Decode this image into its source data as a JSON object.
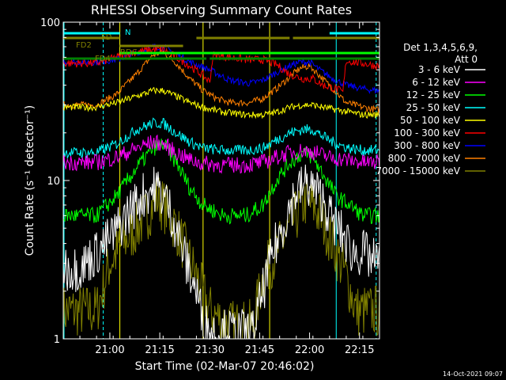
{
  "chart_data": {
    "type": "line",
    "title": "RHESSI Observing Summary Count Rates",
    "xlabel": "Start Time (02-Mar-07 20:46:02)",
    "ylabel": "Count Rate (s⁻¹ detector⁻¹)",
    "x_unit": "minutes since 20:46:02",
    "xlim": [
      0,
      95
    ],
    "ylim": [
      1,
      100
    ],
    "yscale": "log",
    "x_ticks": [
      {
        "value": 14,
        "label": "21:00"
      },
      {
        "value": 29,
        "label": "21:15"
      },
      {
        "value": 44,
        "label": "21:30"
      },
      {
        "value": 59,
        "label": "21:45"
      },
      {
        "value": 74,
        "label": "22:00"
      },
      {
        "value": 89,
        "label": "22:15"
      }
    ],
    "y_ticks": [
      {
        "value": 1,
        "label": "1"
      },
      {
        "value": 10,
        "label": "10"
      },
      {
        "value": 100,
        "label": "100"
      }
    ],
    "legend_title": "Det 1,3,4,5,6,9,",
    "legend_subtitle": "Att 0",
    "legend_position": "right",
    "timestamp": "14-Oct-2021 09:07",
    "series": [
      {
        "name": "3 - 6 keV",
        "color": "#ffffff",
        "points": [
          [
            0,
            2.8
          ],
          [
            5,
            2.8
          ],
          [
            10,
            3.5
          ],
          [
            15,
            4.5
          ],
          [
            20,
            6.5
          ],
          [
            25,
            8.5
          ],
          [
            28,
            9
          ],
          [
            31,
            7.5
          ],
          [
            34,
            5
          ],
          [
            37,
            3
          ],
          [
            40,
            2
          ],
          [
            42,
            1.3
          ],
          [
            44,
            1.1
          ],
          [
            50,
            1.1
          ],
          [
            57,
            1.1
          ],
          [
            60,
            2
          ],
          [
            63,
            3.5
          ],
          [
            67,
            6
          ],
          [
            70,
            8.5
          ],
          [
            73,
            9.5
          ],
          [
            75,
            9
          ],
          [
            78,
            7.5
          ],
          [
            81,
            5.5
          ],
          [
            84,
            4.5
          ],
          [
            87,
            3.5
          ],
          [
            90,
            3.5
          ],
          [
            94,
            3
          ]
        ]
      },
      {
        "name": "6 - 12 keV",
        "color": "#ff00ff",
        "points": [
          [
            0,
            13
          ],
          [
            10,
            13
          ],
          [
            16,
            14
          ],
          [
            22,
            16
          ],
          [
            27,
            17.5
          ],
          [
            30,
            17
          ],
          [
            34,
            15
          ],
          [
            38,
            13.5
          ],
          [
            42,
            12.8
          ],
          [
            48,
            12.5
          ],
          [
            55,
            12.5
          ],
          [
            60,
            13
          ],
          [
            64,
            14
          ],
          [
            68,
            15
          ],
          [
            72,
            15.5
          ],
          [
            76,
            15
          ],
          [
            80,
            14
          ],
          [
            85,
            13.5
          ],
          [
            90,
            13
          ],
          [
            94,
            13
          ]
        ]
      },
      {
        "name": "12 - 25 keV",
        "color": "#00ff00",
        "points": [
          [
            0,
            6
          ],
          [
            10,
            6
          ],
          [
            16,
            8
          ],
          [
            22,
            12
          ],
          [
            27,
            16
          ],
          [
            30,
            17
          ],
          [
            34,
            13
          ],
          [
            38,
            9
          ],
          [
            42,
            7
          ],
          [
            48,
            6
          ],
          [
            55,
            6
          ],
          [
            60,
            7
          ],
          [
            64,
            10
          ],
          [
            68,
            13
          ],
          [
            72,
            15
          ],
          [
            75,
            14
          ],
          [
            78,
            11
          ],
          [
            82,
            8
          ],
          [
            86,
            7
          ],
          [
            90,
            6
          ],
          [
            94,
            6
          ]
        ]
      },
      {
        "name": "25 - 50 keV",
        "color": "#00ffff",
        "points": [
          [
            0,
            15
          ],
          [
            10,
            15
          ],
          [
            16,
            17
          ],
          [
            22,
            21
          ],
          [
            27,
            23
          ],
          [
            30,
            23
          ],
          [
            34,
            20
          ],
          [
            38,
            17.5
          ],
          [
            42,
            16
          ],
          [
            48,
            15.5
          ],
          [
            55,
            15.5
          ],
          [
            60,
            16
          ],
          [
            64,
            18
          ],
          [
            68,
            20
          ],
          [
            72,
            21
          ],
          [
            75,
            21
          ],
          [
            78,
            19
          ],
          [
            82,
            17
          ],
          [
            86,
            16
          ],
          [
            90,
            15.5
          ],
          [
            94,
            15.5
          ]
        ]
      },
      {
        "name": "50 - 100 keV",
        "color": "#ffff00",
        "points": [
          [
            0,
            29
          ],
          [
            10,
            29
          ],
          [
            16,
            31
          ],
          [
            22,
            34
          ],
          [
            27,
            37
          ],
          [
            30,
            37
          ],
          [
            34,
            34
          ],
          [
            38,
            31
          ],
          [
            42,
            29
          ],
          [
            48,
            27
          ],
          [
            55,
            26
          ],
          [
            60,
            26
          ],
          [
            64,
            27
          ],
          [
            68,
            29
          ],
          [
            72,
            30
          ],
          [
            75,
            30
          ],
          [
            78,
            29
          ],
          [
            82,
            28
          ],
          [
            86,
            27
          ],
          [
            90,
            26
          ],
          [
            94,
            26
          ]
        ]
      },
      {
        "name": "100 - 300 keV",
        "color": "#ff0000",
        "points": [
          [
            0,
            55
          ],
          [
            10,
            55
          ],
          [
            16,
            60
          ],
          [
            22,
            65
          ],
          [
            27,
            67
          ],
          [
            30,
            67
          ],
          [
            34,
            60
          ],
          [
            38,
            53
          ],
          [
            42,
            46
          ],
          [
            44,
            42
          ],
          [
            45,
            62
          ],
          [
            50,
            60
          ],
          [
            55,
            58
          ],
          [
            60,
            58
          ],
          [
            64,
            54
          ],
          [
            68,
            47
          ],
          [
            72,
            44
          ],
          [
            75,
            44
          ],
          [
            78,
            40
          ],
          [
            82,
            38
          ],
          [
            84,
            36
          ],
          [
            85,
            57
          ],
          [
            90,
            55
          ],
          [
            94,
            53
          ]
        ]
      },
      {
        "name": "300 - 800 keV",
        "color": "#0000ff",
        "points": [
          [
            0,
            56
          ],
          [
            10,
            56
          ],
          [
            16,
            58
          ],
          [
            22,
            64
          ],
          [
            27,
            70
          ],
          [
            30,
            70
          ],
          [
            34,
            63
          ],
          [
            38,
            56
          ],
          [
            42,
            52
          ],
          [
            44,
            50
          ],
          [
            50,
            43
          ],
          [
            56,
            41
          ],
          [
            60,
            43
          ],
          [
            64,
            48
          ],
          [
            68,
            53
          ],
          [
            71,
            56
          ],
          [
            74,
            56
          ],
          [
            77,
            50
          ],
          [
            81,
            44
          ],
          [
            85,
            40
          ],
          [
            90,
            38
          ],
          [
            94,
            37
          ]
        ]
      },
      {
        "name": "800 - 7000 keV",
        "color": "#ff8000",
        "points": [
          [
            0,
            30
          ],
          [
            10,
            30
          ],
          [
            16,
            35
          ],
          [
            22,
            47
          ],
          [
            27,
            62
          ],
          [
            30,
            65
          ],
          [
            34,
            55
          ],
          [
            38,
            44
          ],
          [
            42,
            37
          ],
          [
            46,
            33
          ],
          [
            50,
            31
          ],
          [
            56,
            31
          ],
          [
            60,
            33
          ],
          [
            64,
            38
          ],
          [
            68,
            45
          ],
          [
            71,
            51
          ],
          [
            74,
            53
          ],
          [
            77,
            46
          ],
          [
            81,
            38
          ],
          [
            85,
            31
          ],
          [
            90,
            29
          ],
          [
            94,
            28
          ]
        ]
      },
      {
        "name": "7000 - 15000 keV",
        "color": "#808000",
        "points": [
          [
            0,
            1.5
          ],
          [
            10,
            1.5
          ],
          [
            14,
            3
          ],
          [
            18,
            4
          ],
          [
            22,
            5
          ],
          [
            26,
            6.5
          ],
          [
            28,
            8
          ],
          [
            31,
            6.5
          ],
          [
            34,
            5
          ],
          [
            37,
            3.5
          ],
          [
            40,
            2.5
          ],
          [
            44,
            1.5
          ],
          [
            50,
            1.2
          ],
          [
            57,
            1.2
          ],
          [
            60,
            2.5
          ],
          [
            64,
            3.5
          ],
          [
            68,
            5
          ],
          [
            71,
            6.5
          ],
          [
            73,
            7.5
          ],
          [
            76,
            6.5
          ],
          [
            79,
            5
          ],
          [
            82,
            3.5
          ],
          [
            85,
            2.5
          ],
          [
            88,
            1.5
          ],
          [
            94,
            1.5
          ]
        ]
      }
    ],
    "flags": [
      {
        "name": "N",
        "color": "#00ffff",
        "segments": [
          [
            0,
            17
          ],
          [
            80,
            95
          ]
        ]
      },
      {
        "name": "FD",
        "color": "#808000",
        "segments": [
          [
            0,
            17
          ],
          [
            40,
            68
          ],
          [
            69,
            95
          ]
        ]
      },
      {
        "name": "FD2",
        "color": "#808000",
        "segments": [
          [
            17,
            36
          ]
        ]
      },
      {
        "name": "RDC",
        "color": "#00ff00",
        "segments": [
          [
            17,
            95
          ]
        ]
      },
      {
        "name": "FD4",
        "color": "#008000",
        "segments": [
          [
            0,
            43
          ],
          [
            44,
            95
          ]
        ]
      }
    ],
    "flag_labels": {
      "N": "N",
      "FD": "FD",
      "FD2": "FD2",
      "RDC": "RDC",
      "FD4": "FD4"
    }
  }
}
